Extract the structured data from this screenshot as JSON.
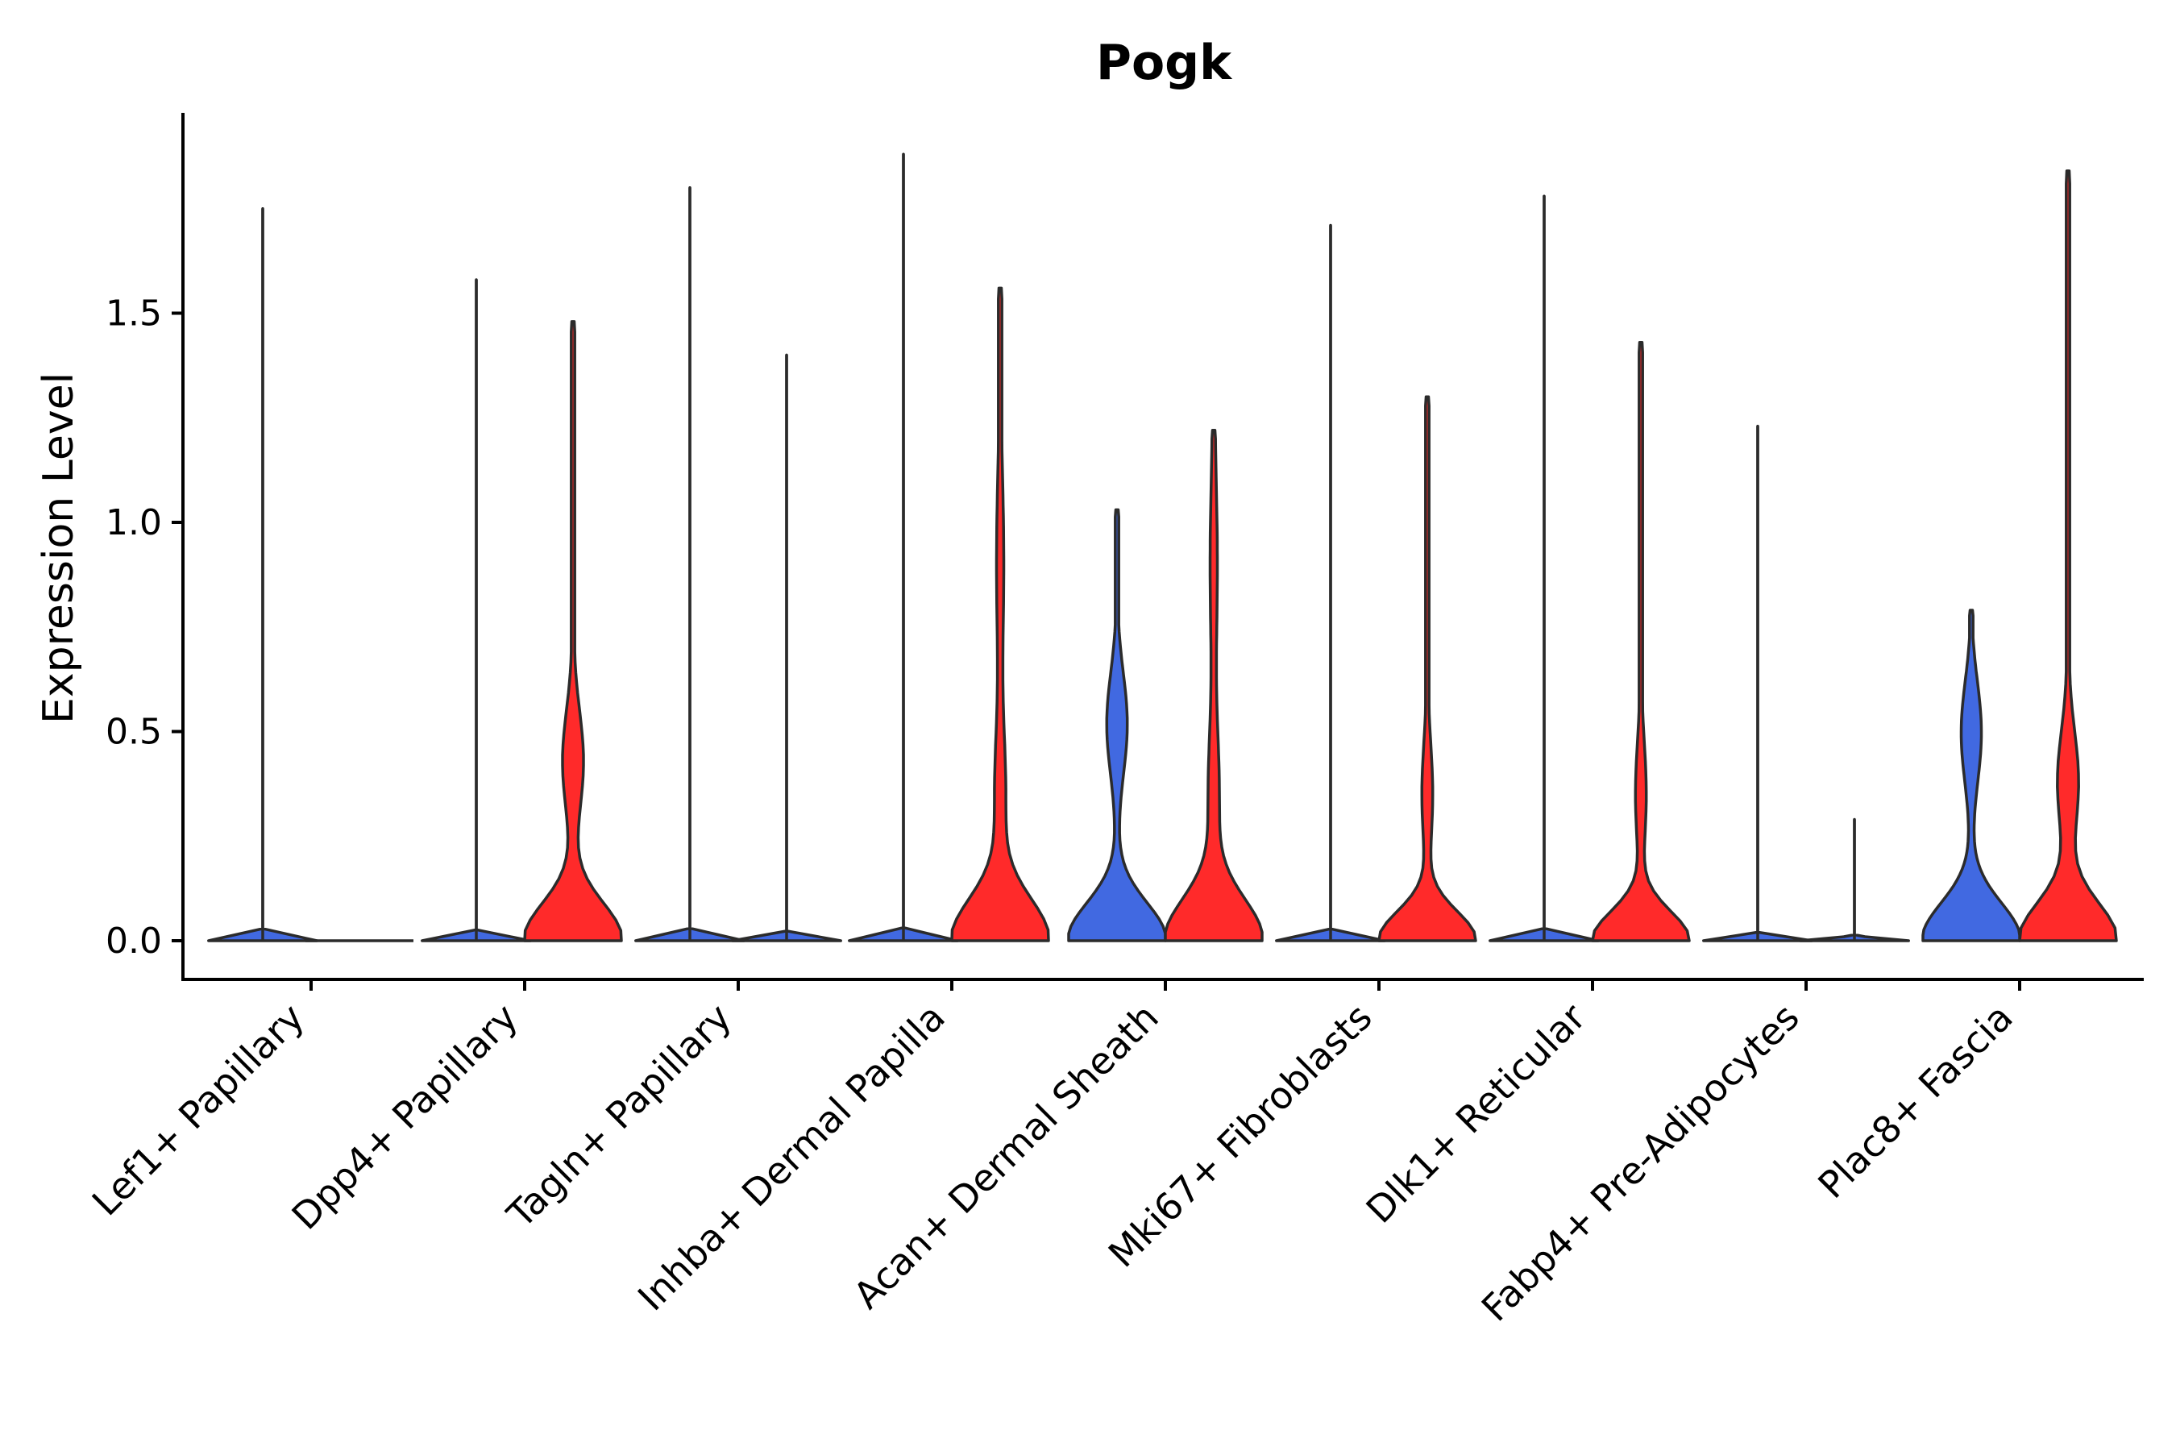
{
  "chart_data": {
    "type": "violin",
    "title": "Pogk",
    "xlabel": "",
    "ylabel": "Expression Level",
    "ylim": [
      -0.1,
      1.98
    ],
    "yticks": [
      0.0,
      0.5,
      1.0,
      1.5
    ],
    "ytick_labels": [
      "0.0",
      "0.5",
      "1.0",
      "1.5"
    ],
    "legend": "none",
    "colors": {
      "blue": "#4169E1",
      "red": "#FF2A2A",
      "outline": "#2b2b2b"
    },
    "categories": [
      "Lef1+ Papillary",
      "Dpp4+ Papillary",
      "Tagln+ Papillary",
      "Inhba+ Dermal Papilla",
      "Acan+ Dermal Sheath",
      "Mki67+ Fibroblasts",
      "Dlk1+ Reticular",
      "Fabp4+ Pre-Adipocytes",
      "Plac8+ Fascia"
    ],
    "groups": [
      {
        "violins": [
          {
            "color": "blue",
            "max": 1.75,
            "shape": "flat"
          },
          {
            "color": "blue",
            "max": 0.0,
            "shape": "flat"
          }
        ]
      },
      {
        "violins": [
          {
            "color": "blue",
            "max": 1.58,
            "shape": "flat"
          },
          {
            "color": "red",
            "max": 1.48,
            "shape": "wide-mode-0.43"
          }
        ]
      },
      {
        "violins": [
          {
            "color": "blue",
            "max": 1.8,
            "shape": "flat"
          },
          {
            "color": "blue",
            "max": 1.4,
            "shape": "flat"
          }
        ]
      },
      {
        "violins": [
          {
            "color": "blue",
            "max": 1.88,
            "shape": "flat"
          },
          {
            "color": "red",
            "max": 1.56,
            "shape": "wide-tail"
          }
        ]
      },
      {
        "violins": [
          {
            "color": "blue",
            "max": 1.03,
            "shape": "wide-mode-0.52"
          },
          {
            "color": "red",
            "max": 1.22,
            "shape": "wide-tail"
          }
        ]
      },
      {
        "violins": [
          {
            "color": "blue",
            "max": 1.71,
            "shape": "flat"
          },
          {
            "color": "red",
            "max": 1.3,
            "shape": "narrow-mode-0.35"
          }
        ]
      },
      {
        "violins": [
          {
            "color": "blue",
            "max": 1.78,
            "shape": "flat"
          },
          {
            "color": "red",
            "max": 1.43,
            "shape": "narrow-mode-0.35"
          }
        ]
      },
      {
        "violins": [
          {
            "color": "blue",
            "max": 1.23,
            "shape": "flat"
          },
          {
            "color": "blue",
            "max": 0.29,
            "shape": "flat"
          }
        ]
      },
      {
        "violins": [
          {
            "color": "blue",
            "max": 0.79,
            "shape": "wide-mode-0.5"
          },
          {
            "color": "red",
            "max": 1.84,
            "shape": "wide-mode-0.38"
          }
        ]
      }
    ]
  }
}
